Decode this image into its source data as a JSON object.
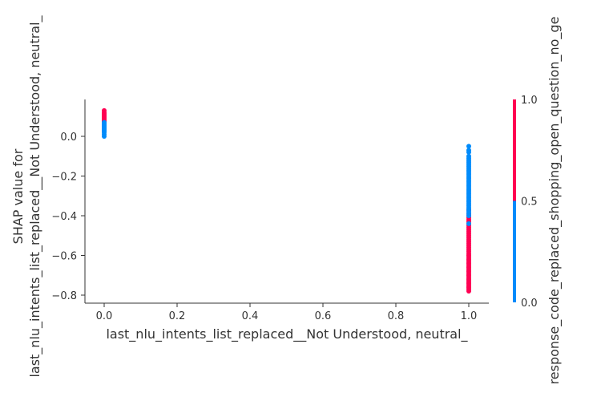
{
  "chart_data": {
    "type": "scatter",
    "title": "",
    "xlabel": "last_nlu_intents_list_replaced__Not Understood, neutral_",
    "ylabel_lines": [
      "SHAP value for",
      "last_nlu_intents_list_replaced__Not Understood, neutral_"
    ],
    "xlim": [
      -0.05,
      1.05
    ],
    "ylim": [
      -0.84,
      0.18
    ],
    "xticks": [
      "0.0",
      "0.2",
      "0.4",
      "0.6",
      "0.8",
      "1.0"
    ],
    "xtick_values": [
      0.0,
      0.2,
      0.4,
      0.6,
      0.8,
      1.0
    ],
    "yticks": [
      "0.0",
      "−0.2",
      "−0.4",
      "−0.6",
      "−0.8"
    ],
    "ytick_values": [
      0.0,
      -0.2,
      -0.4,
      -0.6,
      -0.8
    ],
    "series": [
      {
        "color_feature_value": 1.0,
        "color": "#ff0052",
        "x": [
          0,
          0,
          0,
          0,
          0,
          0,
          0,
          0,
          0,
          0,
          0,
          1,
          1,
          1,
          1,
          1,
          1,
          1,
          1,
          1,
          1,
          1,
          1,
          1,
          1,
          1,
          1,
          1,
          1,
          1,
          1,
          1,
          1,
          1,
          1,
          1,
          1,
          1,
          1,
          1,
          1,
          1,
          1,
          1,
          1,
          1,
          1,
          1,
          1,
          1,
          1,
          1,
          1,
          1,
          1,
          1,
          1,
          1,
          1,
          1,
          1
        ],
        "y": [
          0.13,
          0.12,
          0.115,
          0.11,
          0.105,
          0.1,
          0.095,
          0.09,
          0.085,
          0.08,
          0.075,
          -0.37,
          -0.39,
          -0.41,
          -0.43,
          -0.45,
          -0.47,
          -0.49,
          -0.51,
          -0.53,
          -0.55,
          -0.57,
          -0.59,
          -0.6,
          -0.61,
          -0.62,
          -0.63,
          -0.64,
          -0.65,
          -0.66,
          -0.67,
          -0.68,
          -0.69,
          -0.7,
          -0.71,
          -0.72,
          -0.73,
          -0.74,
          -0.75,
          -0.76,
          -0.77,
          -0.78,
          -0.42,
          -0.44,
          -0.46,
          -0.48,
          -0.5,
          -0.52,
          -0.54,
          -0.56,
          -0.58,
          -0.6,
          -0.62,
          -0.64,
          -0.66,
          -0.68,
          -0.7,
          -0.72,
          -0.74,
          -0.76,
          -0.4
        ]
      },
      {
        "color_feature_value": 0.0,
        "color": "#008bfb",
        "x": [
          0,
          0,
          0,
          0,
          0,
          0,
          0,
          0,
          0,
          0,
          0,
          0,
          0,
          1,
          1,
          1,
          1,
          1,
          1,
          1,
          1,
          1,
          1,
          1,
          1,
          1,
          1,
          1,
          1,
          1,
          1,
          1,
          1,
          1,
          1,
          1,
          1,
          1,
          1,
          1,
          1,
          1,
          1,
          1,
          1,
          1,
          1,
          1
        ],
        "y": [
          0.07,
          0.065,
          0.06,
          0.055,
          0.05,
          0.045,
          0.04,
          0.035,
          0.03,
          0.025,
          0.02,
          0.01,
          0.0,
          -0.05,
          -0.07,
          -0.08,
          -0.1,
          -0.11,
          -0.12,
          -0.13,
          -0.14,
          -0.15,
          -0.16,
          -0.17,
          -0.18,
          -0.19,
          -0.2,
          -0.21,
          -0.22,
          -0.23,
          -0.24,
          -0.25,
          -0.26,
          -0.27,
          -0.28,
          -0.29,
          -0.3,
          -0.31,
          -0.32,
          -0.33,
          -0.34,
          -0.35,
          -0.36,
          -0.37,
          -0.38,
          -0.39,
          -0.4,
          -0.44
        ]
      }
    ],
    "colorbar": {
      "label": "response_code_replaced_shopping_open_question_no_ge",
      "ticks": [
        "0.0",
        "0.5",
        "1.0"
      ],
      "tick_values": [
        0.0,
        0.5,
        1.0
      ],
      "low_color": "#008bfb",
      "high_color": "#ff0052"
    },
    "grid": false,
    "legend": "none"
  }
}
